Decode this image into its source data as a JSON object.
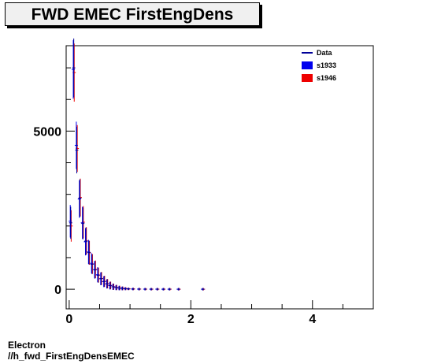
{
  "title": "FWD EMEC FirstEngDens",
  "footer": {
    "line1": "Electron",
    "line2": "//h_fwd_FirstEngDensEMEC"
  },
  "chart_data": {
    "type": "scatter",
    "title": "FWD EMEC FirstEngDens",
    "xlabel": "",
    "ylabel": "",
    "xlim": [
      -0.05,
      5.0
    ],
    "ylim": [
      -620,
      7700
    ],
    "xticks": [
      0,
      2,
      4
    ],
    "yticks": [
      0,
      5000
    ],
    "grid": false,
    "legend": {
      "position": "top-right",
      "entries": [
        {
          "label": "Data",
          "color": "#000099",
          "style": "line"
        },
        {
          "label": "s1933",
          "color": "#0000ee",
          "style": "box"
        },
        {
          "label": "s1946",
          "color": "#ee0000",
          "style": "box"
        }
      ]
    },
    "series": [
      {
        "name": "s1946",
        "color": "#ee0000",
        "x": [
          0.025,
          0.075,
          0.125,
          0.175,
          0.225,
          0.275,
          0.325,
          0.375,
          0.425,
          0.475,
          0.525,
          0.575,
          0.625,
          0.675,
          0.725,
          0.775,
          0.825,
          0.875,
          0.925,
          0.975,
          1.05,
          1.15,
          1.25,
          1.35,
          1.45,
          1.55,
          1.65,
          1.8,
          2.2
        ],
        "values": [
          2000,
          6850,
          4450,
          2900,
          2120,
          1530,
          1150,
          800,
          630,
          450,
          340,
          250,
          175,
          120,
          80,
          55,
          40,
          28,
          18,
          12,
          8,
          5,
          3,
          2,
          2,
          2,
          2,
          1,
          1
        ]
      },
      {
        "name": "s1933",
        "color": "#0000ee",
        "x": [
          0.025,
          0.075,
          0.125,
          0.175,
          0.225,
          0.275,
          0.325,
          0.375,
          0.425,
          0.475,
          0.525,
          0.575,
          0.625,
          0.675,
          0.725,
          0.775,
          0.825,
          0.875,
          0.925,
          0.975,
          1.05,
          1.15,
          1.25,
          1.35,
          1.45,
          1.55,
          1.65,
          1.8,
          2.2
        ],
        "values": [
          2150,
          6950,
          4550,
          2850,
          2100,
          1500,
          1180,
          820,
          620,
          460,
          330,
          240,
          170,
          115,
          78,
          52,
          38,
          26,
          17,
          11,
          7,
          4,
          3,
          2,
          2,
          1,
          1,
          1,
          1
        ]
      },
      {
        "name": "Data",
        "color": "#000099",
        "x": [
          0.025,
          0.075,
          0.125,
          0.175,
          0.225,
          0.275,
          0.325,
          0.375,
          0.425,
          0.475,
          0.525,
          0.575,
          0.625,
          0.675,
          0.725,
          0.775,
          0.825,
          0.875,
          0.925,
          0.975,
          1.05,
          1.15,
          1.25,
          1.35,
          1.45,
          1.55,
          1.65,
          1.8,
          2.2
        ],
        "values": [
          2100,
          7000,
          4400,
          2880,
          2080,
          1520,
          1160,
          790,
          610,
          440,
          335,
          245,
          172,
          118,
          79,
          54,
          39,
          27,
          17,
          11,
          7,
          4,
          3,
          2,
          2,
          1,
          1,
          1,
          1
        ]
      }
    ]
  }
}
